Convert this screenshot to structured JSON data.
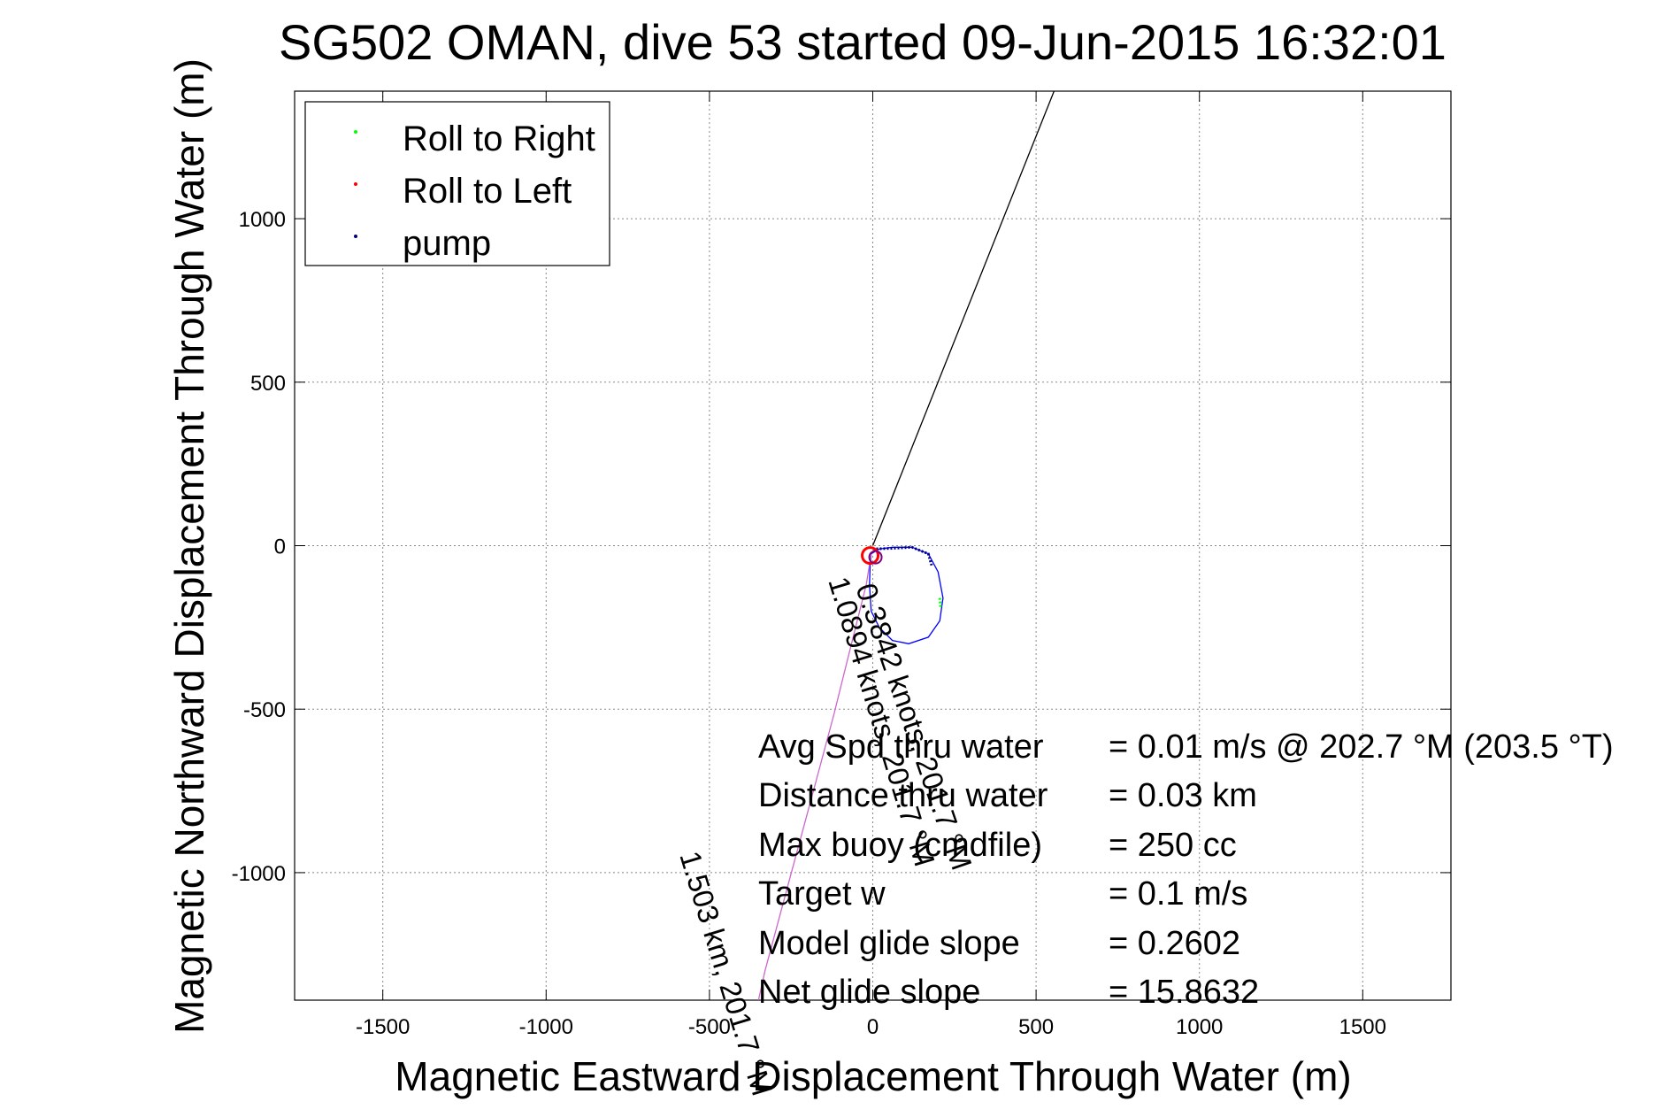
{
  "chart_data": {
    "type": "line",
    "title": "SG502 OMAN, dive 53 started 09-Jun-2015 16:32:01",
    "xlabel": "Magnetic Eastward Displacement Through Water (m)",
    "ylabel": "Magnetic Northward Displacement Through Water (m)",
    "xlim": [
      -1770,
      1770
    ],
    "ylim": [
      -1390,
      1390
    ],
    "xticks": [
      -1500,
      -1000,
      -500,
      0,
      500,
      1000,
      1500
    ],
    "yticks": [
      -1000,
      -500,
      0,
      500,
      1000
    ],
    "xtick_labels": [
      "-1500",
      "-1000",
      "-500",
      "0",
      "500",
      "1000",
      "1500"
    ],
    "ytick_labels": [
      "-1000",
      "-500",
      "0",
      "500",
      "1000"
    ],
    "grid": true,
    "legend": {
      "placement": "top-left",
      "entries": [
        {
          "label": "Roll to Right",
          "color": "#00ff00"
        },
        {
          "label": "Roll to Left",
          "color": "#ff0000"
        },
        {
          "label": "pump",
          "color": "#000080"
        }
      ]
    },
    "series": [
      {
        "name": "current heading",
        "color": "#000000",
        "points": [
          [
            0,
            0
          ],
          [
            555,
            1390
          ]
        ]
      },
      {
        "name": "glider track",
        "color": "#0000ff",
        "points": [
          [
            -5,
            -25
          ],
          [
            20,
            -10
          ],
          [
            60,
            -5
          ],
          [
            120,
            -5
          ],
          [
            170,
            -25
          ],
          [
            200,
            -80
          ],
          [
            215,
            -160
          ],
          [
            205,
            -230
          ],
          [
            170,
            -280
          ],
          [
            110,
            -300
          ],
          [
            60,
            -290
          ],
          [
            20,
            -250
          ],
          [
            -5,
            -200
          ],
          [
            -10,
            -120
          ],
          [
            -8,
            -60
          ],
          [
            -5,
            -25
          ]
        ]
      },
      {
        "name": "drift track",
        "color": "#cc66cc",
        "points": [
          [
            -5,
            -25
          ],
          [
            -20,
            -120
          ],
          [
            -60,
            -280
          ],
          [
            -120,
            -520
          ],
          [
            -190,
            -780
          ],
          [
            -260,
            -1040
          ],
          [
            -330,
            -1300
          ],
          [
            -350,
            -1390
          ]
        ]
      },
      {
        "name": "pump",
        "color": "#000080",
        "points": [
          [
            0,
            -10
          ],
          [
            60,
            -8
          ],
          [
            120,
            -5
          ],
          [
            170,
            -25
          ],
          [
            180,
            -60
          ]
        ]
      },
      {
        "name": "Roll to Right",
        "color": "#00ff00",
        "points": [
          [
            205,
            -160
          ],
          [
            208,
            -190
          ]
        ]
      },
      {
        "name": "Roll to Left",
        "color": "#ff0000",
        "points": [
          [
            -8,
            -30
          ]
        ]
      }
    ],
    "annotations": {
      "rotated_labels": [
        "0.3842 knots, 201.7 °M",
        "1.0894 knots, 201.7 °M",
        "1.503 km, 201.7 °M"
      ],
      "stats": [
        {
          "label": "Avg Spd thru water",
          "value": "=  0.01 m/s @ 202.7 °M (203.5 °T)"
        },
        {
          "label": "Distance thru water",
          "value": "=  0.03 km"
        },
        {
          "label": "Max buoy (cmdfile)",
          "value": "= 250 cc"
        },
        {
          "label": "Target w",
          "value": "= 0.1 m/s"
        },
        {
          "label": "Model glide slope",
          "value": "= 0.2602"
        },
        {
          "label": "Net glide slope",
          "value": "= 15.8632"
        }
      ]
    }
  }
}
